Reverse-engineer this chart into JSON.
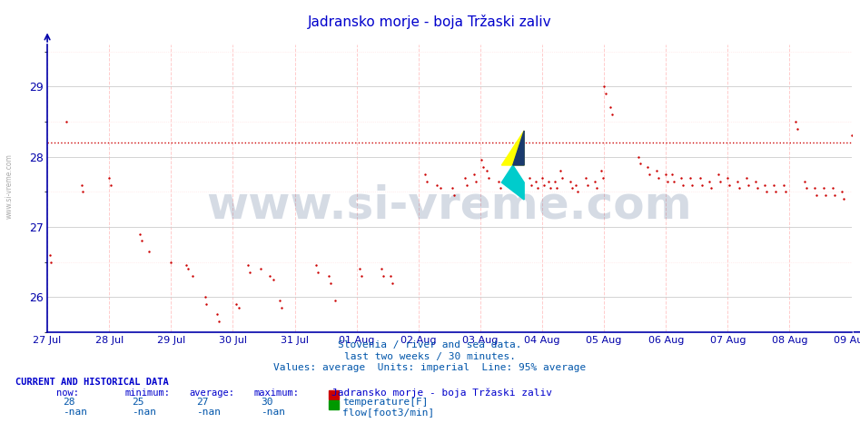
{
  "title": "Jadransko morje - boja Tržaski zaliv",
  "title_color": "#0000cc",
  "background_color": "#ffffff",
  "plot_bg_color": "#ffffff",
  "grid_color_major": "#cccccc",
  "grid_color_minor": "#ffcccc",
  "axis_color": "#0000aa",
  "tick_color": "#0000aa",
  "dot_color": "#cc0000",
  "hline_color": "#cc0000",
  "hline_y": 28.2,
  "ylim": [
    25.5,
    29.6
  ],
  "yticks": [
    26,
    27,
    28,
    29
  ],
  "xlabel_texts": [
    "27 Jul",
    "28 Jul",
    "29 Jul",
    "30 Jul",
    "31 Jul",
    "01 Aug",
    "02 Aug",
    "03 Aug",
    "04 Aug",
    "05 Aug",
    "06 Aug",
    "07 Aug",
    "08 Aug",
    "09 Aug"
  ],
  "subtitle1": "Slovenia / river and sea data.",
  "subtitle2": "last two weeks / 30 minutes.",
  "subtitle3": "Values: average  Units: imperial  Line: 95% average",
  "subtitle_color": "#0055aa",
  "watermark": "www.si-vreme.com",
  "watermark_color": "#1a3a6e",
  "watermark_alpha": 0.18,
  "bottom_label": "CURRENT AND HISTORICAL DATA",
  "bottom_label_color": "#0000cc",
  "stats_labels": [
    "now:",
    "minimum:",
    "average:",
    "maximum:"
  ],
  "stats_temp": [
    "28",
    "25",
    "27",
    "30"
  ],
  "stats_flow": [
    "-nan",
    "-nan",
    "-nan",
    "-nan"
  ],
  "legend_title": "Jadransko morje - boja Tržaski zaliv",
  "legend_temp": "temperature[F]",
  "legend_flow": "flow[foot3/min]",
  "temp_dot_color": "#cc0000",
  "flow_dot_color": "#009900",
  "sidebar_text": "www.si-vreme.com",
  "sidebar_color": "#aaaaaa",
  "temp_data": [
    [
      0.04,
      26.6
    ],
    [
      0.06,
      26.5
    ],
    [
      0.3,
      28.5
    ],
    [
      0.55,
      27.6
    ],
    [
      0.57,
      27.5
    ],
    [
      1.0,
      27.7
    ],
    [
      1.02,
      27.6
    ],
    [
      1.5,
      26.9
    ],
    [
      1.52,
      26.8
    ],
    [
      1.65,
      26.65
    ],
    [
      2.0,
      26.5
    ],
    [
      2.25,
      26.45
    ],
    [
      2.27,
      26.4
    ],
    [
      2.35,
      26.3
    ],
    [
      2.55,
      26.0
    ],
    [
      2.57,
      25.9
    ],
    [
      2.75,
      25.75
    ],
    [
      2.78,
      25.65
    ],
    [
      3.05,
      25.9
    ],
    [
      3.1,
      25.85
    ],
    [
      3.25,
      26.45
    ],
    [
      3.28,
      26.35
    ],
    [
      3.45,
      26.4
    ],
    [
      3.6,
      26.3
    ],
    [
      3.65,
      26.25
    ],
    [
      3.75,
      25.95
    ],
    [
      3.78,
      25.85
    ],
    [
      4.35,
      26.45
    ],
    [
      4.38,
      26.35
    ],
    [
      4.55,
      26.3
    ],
    [
      4.58,
      26.2
    ],
    [
      4.65,
      25.95
    ],
    [
      5.05,
      26.4
    ],
    [
      5.08,
      26.3
    ],
    [
      5.4,
      26.4
    ],
    [
      5.43,
      26.3
    ],
    [
      5.55,
      26.3
    ],
    [
      5.58,
      26.2
    ],
    [
      6.1,
      27.75
    ],
    [
      6.13,
      27.65
    ],
    [
      6.3,
      27.6
    ],
    [
      6.35,
      27.55
    ],
    [
      6.55,
      27.55
    ],
    [
      6.58,
      27.45
    ],
    [
      6.75,
      27.7
    ],
    [
      6.78,
      27.6
    ],
    [
      6.9,
      27.75
    ],
    [
      6.93,
      27.65
    ],
    [
      7.02,
      27.95
    ],
    [
      7.05,
      27.85
    ],
    [
      7.1,
      27.8
    ],
    [
      7.13,
      27.7
    ],
    [
      7.3,
      27.65
    ],
    [
      7.33,
      27.55
    ],
    [
      7.5,
      27.7
    ],
    [
      7.53,
      27.6
    ],
    [
      7.65,
      27.65
    ],
    [
      7.68,
      27.55
    ],
    [
      7.8,
      27.7
    ],
    [
      7.83,
      27.6
    ],
    [
      7.9,
      27.65
    ],
    [
      7.93,
      27.55
    ],
    [
      8.0,
      27.7
    ],
    [
      8.03,
      27.6
    ],
    [
      8.1,
      27.65
    ],
    [
      8.13,
      27.55
    ],
    [
      8.2,
      27.65
    ],
    [
      8.23,
      27.55
    ],
    [
      8.3,
      27.8
    ],
    [
      8.33,
      27.7
    ],
    [
      8.45,
      27.65
    ],
    [
      8.48,
      27.55
    ],
    [
      8.55,
      27.6
    ],
    [
      8.58,
      27.5
    ],
    [
      8.7,
      27.7
    ],
    [
      8.73,
      27.6
    ],
    [
      8.85,
      27.65
    ],
    [
      8.88,
      27.55
    ],
    [
      8.95,
      27.8
    ],
    [
      8.98,
      27.7
    ],
    [
      9.0,
      29.0
    ],
    [
      9.03,
      28.9
    ],
    [
      9.1,
      28.7
    ],
    [
      9.13,
      28.6
    ],
    [
      9.55,
      28.0
    ],
    [
      9.58,
      27.9
    ],
    [
      9.7,
      27.85
    ],
    [
      9.73,
      27.75
    ],
    [
      9.85,
      27.8
    ],
    [
      9.88,
      27.7
    ],
    [
      10.0,
      27.75
    ],
    [
      10.03,
      27.65
    ],
    [
      10.1,
      27.75
    ],
    [
      10.13,
      27.65
    ],
    [
      10.25,
      27.7
    ],
    [
      10.28,
      27.6
    ],
    [
      10.4,
      27.7
    ],
    [
      10.43,
      27.6
    ],
    [
      10.55,
      27.7
    ],
    [
      10.58,
      27.6
    ],
    [
      10.7,
      27.65
    ],
    [
      10.73,
      27.55
    ],
    [
      10.85,
      27.75
    ],
    [
      10.88,
      27.65
    ],
    [
      11.0,
      27.7
    ],
    [
      11.03,
      27.6
    ],
    [
      11.15,
      27.65
    ],
    [
      11.18,
      27.55
    ],
    [
      11.3,
      27.7
    ],
    [
      11.33,
      27.6
    ],
    [
      11.45,
      27.65
    ],
    [
      11.48,
      27.55
    ],
    [
      11.6,
      27.6
    ],
    [
      11.63,
      27.5
    ],
    [
      11.75,
      27.6
    ],
    [
      11.78,
      27.5
    ],
    [
      11.9,
      27.6
    ],
    [
      11.93,
      27.5
    ],
    [
      12.1,
      28.5
    ],
    [
      12.13,
      28.4
    ],
    [
      12.25,
      27.65
    ],
    [
      12.28,
      27.55
    ],
    [
      12.4,
      27.55
    ],
    [
      12.43,
      27.45
    ],
    [
      12.55,
      27.55
    ],
    [
      12.58,
      27.45
    ],
    [
      12.7,
      27.55
    ],
    [
      12.73,
      27.45
    ],
    [
      12.85,
      27.5
    ],
    [
      12.88,
      27.4
    ],
    [
      13.0,
      28.3
    ]
  ]
}
